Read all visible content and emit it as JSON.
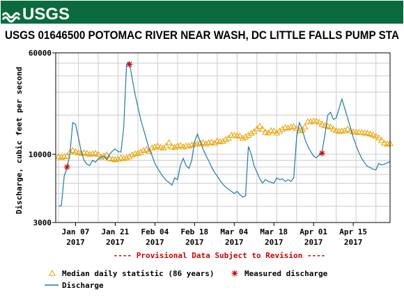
{
  "colors": {
    "banner": "#0b6b3e",
    "discharge": "#1e7aa6",
    "median": "#e8a200",
    "measured": "#cc0000",
    "provisional": "#cc0000"
  },
  "chart_data": {
    "type": "line",
    "banner": "USGS",
    "title": "USGS 01646500 POTOMAC RIVER NEAR WASH, DC LITTLE FALLS PUMP STA",
    "ylabel": "Discharge, cubic feet per second",
    "yscale": "log",
    "ylim": [
      3000,
      60000
    ],
    "y_ticks": [
      {
        "value": 3000,
        "label": "3000"
      },
      {
        "value": 10000,
        "label": "10000"
      },
      {
        "value": 60000,
        "label": "60000"
      }
    ],
    "x_range": [
      "2016-12-31",
      "2017-04-28"
    ],
    "x_ticks": [
      {
        "date": "2017-01-07",
        "line1": "Jan 07",
        "line2": "2017"
      },
      {
        "date": "2017-01-21",
        "line1": "Jan 21",
        "line2": "2017"
      },
      {
        "date": "2017-02-04",
        "line1": "Feb 04",
        "line2": "2017"
      },
      {
        "date": "2017-02-18",
        "line1": "Feb 18",
        "line2": "2017"
      },
      {
        "date": "2017-03-04",
        "line1": "Mar 04",
        "line2": "2017"
      },
      {
        "date": "2017-03-18",
        "line1": "Mar 18",
        "line2": "2017"
      },
      {
        "date": "2017-04-01",
        "line1": "Apr 01",
        "line2": "2017"
      },
      {
        "date": "2017-04-15",
        "line1": "Apr 15",
        "line2": "2017"
      }
    ],
    "grid": true,
    "annotation": "---- Provisional Data Subject to Revision ----",
    "legend": [
      {
        "label": "Median daily statistic (86 years)",
        "marker": "triangle"
      },
      {
        "label": "Measured discharge",
        "marker": "asterisk"
      },
      {
        "label": "Discharge",
        "marker": "line"
      }
    ],
    "series": [
      {
        "name": "Discharge",
        "style": "line",
        "points": [
          [
            "2017-01-01",
            4000
          ],
          [
            "2017-01-02",
            4050
          ],
          [
            "2017-01-03",
            6800
          ],
          [
            "2017-01-04",
            7900
          ],
          [
            "2017-01-05",
            10000
          ],
          [
            "2017-01-06",
            17500
          ],
          [
            "2017-01-07",
            17000
          ],
          [
            "2017-01-08",
            13500
          ],
          [
            "2017-01-09",
            10500
          ],
          [
            "2017-01-10",
            9000
          ],
          [
            "2017-01-11",
            8400
          ],
          [
            "2017-01-12",
            8200
          ],
          [
            "2017-01-13",
            9000
          ],
          [
            "2017-01-14",
            8700
          ],
          [
            "2017-01-15",
            9200
          ],
          [
            "2017-01-16",
            9500
          ],
          [
            "2017-01-17",
            9700
          ],
          [
            "2017-01-18",
            9100
          ],
          [
            "2017-01-19",
            10000
          ],
          [
            "2017-01-20",
            10600
          ],
          [
            "2017-01-21",
            11000
          ],
          [
            "2017-01-22",
            10500
          ],
          [
            "2017-01-23",
            10400
          ],
          [
            "2017-01-24",
            16000
          ],
          [
            "2017-01-25",
            49000
          ],
          [
            "2017-01-26",
            51000
          ],
          [
            "2017-01-27",
            38000
          ],
          [
            "2017-01-28",
            29000
          ],
          [
            "2017-01-29",
            23000
          ],
          [
            "2017-01-30",
            18500
          ],
          [
            "2017-01-31",
            15500
          ],
          [
            "2017-02-01",
            13000
          ],
          [
            "2017-02-02",
            11000
          ],
          [
            "2017-02-03",
            9800
          ],
          [
            "2017-02-04",
            8500
          ],
          [
            "2017-02-05",
            7800
          ],
          [
            "2017-02-06",
            7200
          ],
          [
            "2017-02-07",
            6700
          ],
          [
            "2017-02-08",
            6300
          ],
          [
            "2017-02-09",
            6100
          ],
          [
            "2017-02-10",
            5800
          ],
          [
            "2017-02-11",
            6600
          ],
          [
            "2017-02-12",
            6400
          ],
          [
            "2017-02-13",
            8200
          ],
          [
            "2017-02-14",
            9300
          ],
          [
            "2017-02-15",
            8200
          ],
          [
            "2017-02-16",
            7800
          ],
          [
            "2017-02-17",
            9000
          ],
          [
            "2017-02-18",
            12500
          ],
          [
            "2017-02-19",
            14300
          ],
          [
            "2017-02-20",
            12500
          ],
          [
            "2017-02-21",
            11000
          ],
          [
            "2017-02-22",
            9800
          ],
          [
            "2017-02-23",
            8900
          ],
          [
            "2017-02-24",
            8000
          ],
          [
            "2017-02-25",
            7300
          ],
          [
            "2017-02-26",
            6800
          ],
          [
            "2017-02-27",
            6300
          ],
          [
            "2017-02-28",
            5900
          ],
          [
            "2017-03-01",
            5600
          ],
          [
            "2017-03-02",
            5400
          ],
          [
            "2017-03-03",
            5200
          ],
          [
            "2017-03-04",
            5000
          ],
          [
            "2017-03-05",
            5200
          ],
          [
            "2017-03-06",
            4900
          ],
          [
            "2017-03-07",
            4700
          ],
          [
            "2017-03-08",
            4800
          ],
          [
            "2017-03-09",
            11500
          ],
          [
            "2017-03-10",
            10000
          ],
          [
            "2017-03-11",
            8200
          ],
          [
            "2017-03-12",
            7300
          ],
          [
            "2017-03-13",
            6500
          ],
          [
            "2017-03-14",
            6000
          ],
          [
            "2017-03-15",
            6400
          ],
          [
            "2017-03-16",
            6200
          ],
          [
            "2017-03-17",
            6100
          ],
          [
            "2017-03-18",
            6000
          ],
          [
            "2017-03-19",
            6600
          ],
          [
            "2017-03-20",
            6400
          ],
          [
            "2017-03-21",
            6500
          ],
          [
            "2017-03-22",
            6200
          ],
          [
            "2017-03-23",
            6400
          ],
          [
            "2017-03-24",
            6200
          ],
          [
            "2017-03-25",
            6600
          ],
          [
            "2017-03-26",
            13500
          ],
          [
            "2017-03-27",
            17500
          ],
          [
            "2017-03-28",
            15500
          ],
          [
            "2017-03-29",
            13000
          ],
          [
            "2017-03-30",
            11500
          ],
          [
            "2017-03-31",
            10500
          ],
          [
            "2017-04-01",
            9700
          ],
          [
            "2017-04-02",
            9400
          ],
          [
            "2017-04-03",
            9900
          ],
          [
            "2017-04-04",
            10500
          ],
          [
            "2017-04-05",
            14000
          ],
          [
            "2017-04-06",
            20000
          ],
          [
            "2017-04-07",
            21000
          ],
          [
            "2017-04-08",
            18500
          ],
          [
            "2017-04-09",
            19000
          ],
          [
            "2017-04-10",
            22500
          ],
          [
            "2017-04-11",
            26500
          ],
          [
            "2017-04-12",
            22500
          ],
          [
            "2017-04-13",
            19000
          ],
          [
            "2017-04-14",
            16000
          ],
          [
            "2017-04-15",
            13500
          ],
          [
            "2017-04-16",
            11700
          ],
          [
            "2017-04-17",
            10300
          ],
          [
            "2017-04-18",
            9300
          ],
          [
            "2017-04-19",
            8600
          ],
          [
            "2017-04-20",
            8100
          ],
          [
            "2017-04-21",
            7900
          ],
          [
            "2017-04-22",
            7700
          ],
          [
            "2017-04-23",
            7600
          ],
          [
            "2017-04-24",
            8500
          ],
          [
            "2017-04-25",
            8300
          ],
          [
            "2017-04-26",
            8400
          ],
          [
            "2017-04-27",
            8600
          ],
          [
            "2017-04-28",
            8800
          ]
        ]
      },
      {
        "name": "Median daily statistic (86 years)",
        "style": "triangle",
        "points": [
          [
            "2017-01-01",
            9600
          ],
          [
            "2017-01-02",
            9500
          ],
          [
            "2017-01-03",
            9600
          ],
          [
            "2017-01-04",
            9700
          ],
          [
            "2017-01-05",
            10400
          ],
          [
            "2017-01-06",
            10700
          ],
          [
            "2017-01-07",
            10500
          ],
          [
            "2017-01-08",
            10300
          ],
          [
            "2017-01-09",
            10200
          ],
          [
            "2017-01-10",
            10300
          ],
          [
            "2017-01-11",
            10200
          ],
          [
            "2017-01-12",
            10000
          ],
          [
            "2017-01-13",
            10100
          ],
          [
            "2017-01-14",
            10200
          ],
          [
            "2017-01-15",
            10000
          ],
          [
            "2017-01-16",
            9500
          ],
          [
            "2017-01-17",
            9700
          ],
          [
            "2017-01-18",
            9900
          ],
          [
            "2017-01-19",
            9300
          ],
          [
            "2017-01-20",
            9200
          ],
          [
            "2017-01-21",
            9100
          ],
          [
            "2017-01-22",
            9200
          ],
          [
            "2017-01-23",
            9400
          ],
          [
            "2017-01-24",
            9300
          ],
          [
            "2017-01-25",
            9400
          ],
          [
            "2017-01-26",
            9600
          ],
          [
            "2017-01-27",
            9900
          ],
          [
            "2017-01-28",
            10100
          ],
          [
            "2017-01-29",
            10200
          ],
          [
            "2017-01-30",
            10400
          ],
          [
            "2017-01-31",
            10700
          ],
          [
            "2017-02-01",
            10900
          ],
          [
            "2017-02-02",
            10600
          ],
          [
            "2017-02-03",
            11200
          ],
          [
            "2017-02-04",
            11400
          ],
          [
            "2017-02-05",
            11600
          ],
          [
            "2017-02-06",
            11300
          ],
          [
            "2017-02-07",
            11200
          ],
          [
            "2017-02-08",
            11600
          ],
          [
            "2017-02-09",
            12300
          ],
          [
            "2017-02-10",
            11400
          ],
          [
            "2017-02-11",
            11300
          ],
          [
            "2017-02-12",
            11600
          ],
          [
            "2017-02-13",
            11700
          ],
          [
            "2017-02-14",
            11400
          ],
          [
            "2017-02-15",
            11600
          ],
          [
            "2017-02-16",
            11600
          ],
          [
            "2017-02-17",
            11800
          ],
          [
            "2017-02-18",
            12000
          ],
          [
            "2017-02-19",
            12000
          ],
          [
            "2017-02-20",
            12200
          ],
          [
            "2017-02-21",
            12300
          ],
          [
            "2017-02-22",
            12000
          ],
          [
            "2017-02-23",
            12300
          ],
          [
            "2017-02-24",
            12400
          ],
          [
            "2017-02-25",
            12200
          ],
          [
            "2017-02-26",
            12700
          ],
          [
            "2017-02-27",
            12500
          ],
          [
            "2017-02-28",
            12600
          ],
          [
            "2017-03-01",
            13000
          ],
          [
            "2017-03-02",
            13300
          ],
          [
            "2017-03-03",
            14000
          ],
          [
            "2017-03-04",
            14000
          ],
          [
            "2017-03-05",
            13900
          ],
          [
            "2017-03-06",
            13800
          ],
          [
            "2017-03-07",
            13300
          ],
          [
            "2017-03-08",
            13600
          ],
          [
            "2017-03-09",
            14000
          ],
          [
            "2017-03-10",
            14500
          ],
          [
            "2017-03-11",
            14900
          ],
          [
            "2017-03-12",
            15700
          ],
          [
            "2017-03-13",
            16400
          ],
          [
            "2017-03-14",
            15600
          ],
          [
            "2017-03-15",
            14800
          ],
          [
            "2017-03-16",
            14600
          ],
          [
            "2017-03-17",
            15200
          ],
          [
            "2017-03-18",
            15100
          ],
          [
            "2017-03-19",
            14600
          ],
          [
            "2017-03-20",
            15100
          ],
          [
            "2017-03-21",
            15600
          ],
          [
            "2017-03-22",
            16000
          ],
          [
            "2017-03-23",
            15900
          ],
          [
            "2017-03-24",
            16200
          ],
          [
            "2017-03-25",
            16300
          ],
          [
            "2017-03-26",
            15800
          ],
          [
            "2017-03-27",
            15200
          ],
          [
            "2017-03-28",
            15400
          ],
          [
            "2017-03-29",
            16200
          ],
          [
            "2017-03-30",
            17800
          ],
          [
            "2017-03-31",
            17800
          ],
          [
            "2017-04-01",
            18000
          ],
          [
            "2017-04-02",
            18000
          ],
          [
            "2017-04-03",
            17600
          ],
          [
            "2017-04-04",
            17000
          ],
          [
            "2017-04-05",
            16600
          ],
          [
            "2017-04-06",
            16400
          ],
          [
            "2017-04-07",
            16200
          ],
          [
            "2017-04-08",
            15600
          ],
          [
            "2017-04-09",
            15200
          ],
          [
            "2017-04-10",
            15000
          ],
          [
            "2017-04-11",
            15100
          ],
          [
            "2017-04-12",
            15200
          ],
          [
            "2017-04-13",
            15600
          ],
          [
            "2017-04-14",
            15200
          ],
          [
            "2017-04-15",
            14900
          ],
          [
            "2017-04-16",
            14800
          ],
          [
            "2017-04-17",
            14700
          ],
          [
            "2017-04-18",
            14700
          ],
          [
            "2017-04-19",
            14600
          ],
          [
            "2017-04-20",
            14500
          ],
          [
            "2017-04-21",
            14300
          ],
          [
            "2017-04-22",
            14100
          ],
          [
            "2017-04-23",
            13800
          ],
          [
            "2017-04-24",
            13400
          ],
          [
            "2017-04-25",
            12800
          ],
          [
            "2017-04-26",
            12200
          ],
          [
            "2017-04-27",
            12000
          ],
          [
            "2017-04-28",
            12100
          ]
        ]
      },
      {
        "name": "Measured discharge",
        "style": "asterisk",
        "points": [
          [
            "2017-01-04",
            8000
          ],
          [
            "2017-01-26",
            49000
          ],
          [
            "2017-04-04",
            10200
          ]
        ]
      }
    ]
  }
}
